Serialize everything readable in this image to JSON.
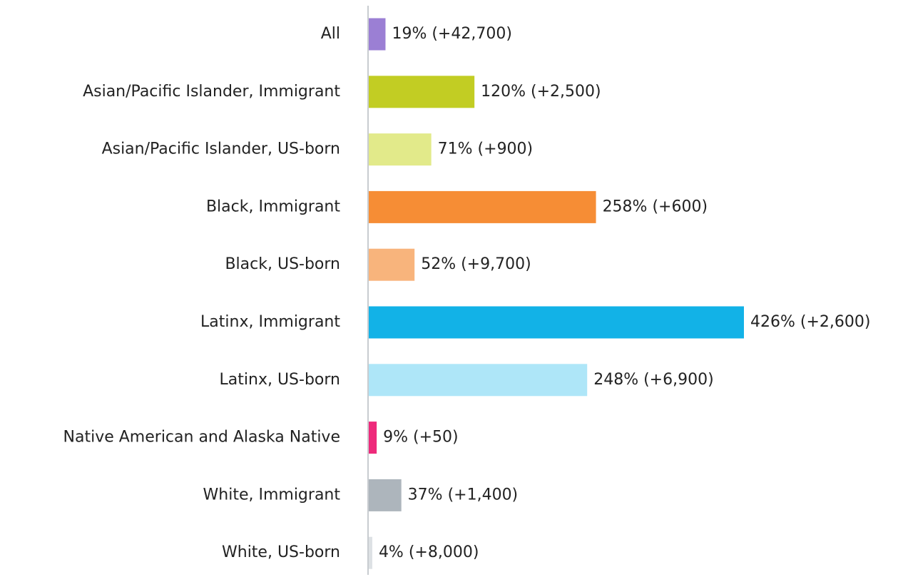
{
  "chart_data": {
    "type": "hbar",
    "categories": [
      "All",
      "Asian/Pacific Islander, Immigrant",
      "Asian/Pacific Islander, US-born",
      "Black, Immigrant",
      "Black, US-born",
      "Latinx, Immigrant",
      "Latinx, US-born",
      "Native American and Alaska Native",
      "White, Immigrant",
      "White, US-born"
    ],
    "values": [
      19,
      120,
      71,
      258,
      52,
      426,
      248,
      9,
      37,
      4
    ],
    "value_labels": [
      "19% (+42,700)",
      "120% (+2,500)",
      "71% (+900)",
      "258% (+600)",
      "52% (+9,700)",
      "426% (+2,600)",
      "248% (+6,900)",
      "9% (+50)",
      "37% (+1,400)",
      "4% (+8,000)"
    ],
    "colors": [
      "#9b7fd4",
      "#c2cd23",
      "#e2ea8a",
      "#f68d35",
      "#f8b47c",
      "#12b2e7",
      "#aee6f8",
      "#ee2a7b",
      "#adb5bc",
      "#dde1e4"
    ]
  }
}
